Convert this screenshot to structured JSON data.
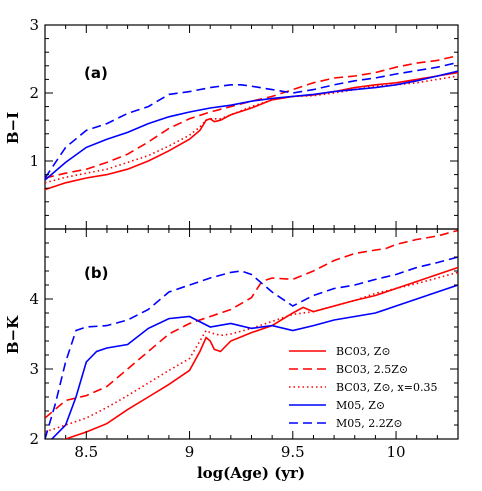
{
  "chart_data": [
    {
      "type": "line",
      "panel_label": "(a)",
      "xlabel": "log(Age) (yr)",
      "ylabel": "B−I",
      "xlim": [
        8.3,
        10.3
      ],
      "ylim": [
        0,
        3
      ],
      "yticks": [
        1,
        2,
        3
      ],
      "series": [
        {
          "name": "BC03, Z⊙",
          "color": "#ff0000",
          "dash": "solid",
          "x": [
            8.3,
            8.4,
            8.5,
            8.6,
            8.7,
            8.8,
            8.9,
            9.0,
            9.05,
            9.08,
            9.1,
            9.12,
            9.15,
            9.2,
            9.3,
            9.4,
            9.5,
            9.6,
            9.7,
            9.8,
            9.9,
            10.0,
            10.1,
            10.2,
            10.3
          ],
          "y": [
            0.58,
            0.68,
            0.75,
            0.8,
            0.88,
            1.0,
            1.15,
            1.32,
            1.45,
            1.6,
            1.62,
            1.58,
            1.6,
            1.68,
            1.78,
            1.9,
            1.95,
            1.97,
            2.02,
            2.08,
            2.12,
            2.15,
            2.2,
            2.25,
            2.3
          ]
        },
        {
          "name": "BC03, 2.5Z⊙",
          "color": "#ff0000",
          "dash": "long",
          "x": [
            8.3,
            8.4,
            8.5,
            8.6,
            8.7,
            8.8,
            8.9,
            9.0,
            9.1,
            9.2,
            9.3,
            9.4,
            9.5,
            9.6,
            9.7,
            9.8,
            9.9,
            10.0,
            10.1,
            10.2,
            10.3
          ],
          "y": [
            0.75,
            0.82,
            0.88,
            0.98,
            1.1,
            1.28,
            1.48,
            1.62,
            1.72,
            1.8,
            1.88,
            1.95,
            2.05,
            2.15,
            2.22,
            2.25,
            2.3,
            2.38,
            2.44,
            2.48,
            2.55
          ]
        },
        {
          "name": "BC03, Z⊙, x=0.35",
          "color": "#ff0000",
          "dash": "dot",
          "x": [
            8.3,
            8.4,
            8.5,
            8.6,
            8.7,
            8.8,
            8.9,
            9.0,
            9.05,
            9.08,
            9.1,
            9.15,
            9.2,
            9.3,
            9.4,
            9.5,
            9.6,
            9.7,
            9.8,
            9.9,
            10.0,
            10.1,
            10.2,
            10.3
          ],
          "y": [
            0.68,
            0.76,
            0.82,
            0.88,
            0.98,
            1.08,
            1.22,
            1.38,
            1.5,
            1.6,
            1.62,
            1.62,
            1.68,
            1.8,
            1.9,
            1.95,
            1.96,
            2.0,
            2.05,
            2.1,
            2.12,
            2.15,
            2.2,
            2.25
          ]
        },
        {
          "name": "M05, Z⊙",
          "color": "#0000ff",
          "dash": "solid",
          "x": [
            8.3,
            8.4,
            8.5,
            8.6,
            8.7,
            8.8,
            8.9,
            9.0,
            9.1,
            9.2,
            9.3,
            9.4,
            9.5,
            9.6,
            9.7,
            9.8,
            9.9,
            10.0,
            10.1,
            10.2,
            10.3
          ],
          "y": [
            0.72,
            0.98,
            1.2,
            1.32,
            1.42,
            1.55,
            1.65,
            1.72,
            1.78,
            1.82,
            1.88,
            1.92,
            1.95,
            1.98,
            2.02,
            2.05,
            2.08,
            2.12,
            2.18,
            2.25,
            2.32
          ]
        },
        {
          "name": "M05, 2.2Z⊙",
          "color": "#0000ff",
          "dash": "long",
          "x": [
            8.3,
            8.4,
            8.5,
            8.6,
            8.7,
            8.8,
            8.9,
            9.0,
            9.1,
            9.2,
            9.25,
            9.3,
            9.4,
            9.5,
            9.6,
            9.7,
            9.8,
            9.9,
            10.0,
            10.1,
            10.2,
            10.3
          ],
          "y": [
            0.75,
            1.2,
            1.45,
            1.55,
            1.7,
            1.8,
            1.98,
            2.02,
            2.08,
            2.12,
            2.12,
            2.1,
            2.05,
            2.0,
            2.05,
            2.12,
            2.18,
            2.22,
            2.28,
            2.33,
            2.38,
            2.45
          ]
        }
      ]
    },
    {
      "type": "line",
      "panel_label": "(b)",
      "xlabel": "log(Age) (yr)",
      "ylabel": "B−K",
      "xlim": [
        8.3,
        10.3
      ],
      "ylim": [
        2,
        5
      ],
      "yticks": [
        2,
        3,
        4
      ],
      "xticks": [
        8.5,
        9,
        9.5,
        10
      ],
      "series": [
        {
          "name": "BC03, Z⊙",
          "color": "#ff0000",
          "dash": "solid",
          "x": [
            8.3,
            8.4,
            8.5,
            8.6,
            8.7,
            8.8,
            8.9,
            9.0,
            9.05,
            9.08,
            9.1,
            9.12,
            9.15,
            9.2,
            9.3,
            9.4,
            9.5,
            9.55,
            9.6,
            9.7,
            9.8,
            9.9,
            10.0,
            10.1,
            10.2,
            10.3
          ],
          "y": [
            1.92,
            2.0,
            2.1,
            2.22,
            2.42,
            2.6,
            2.78,
            2.98,
            3.25,
            3.45,
            3.4,
            3.28,
            3.25,
            3.4,
            3.52,
            3.62,
            3.8,
            3.88,
            3.82,
            3.9,
            3.98,
            4.05,
            4.15,
            4.25,
            4.35,
            4.45
          ]
        },
        {
          "name": "BC03, 2.5Z⊙",
          "color": "#ff0000",
          "dash": "long",
          "x": [
            8.3,
            8.4,
            8.5,
            8.6,
            8.7,
            8.8,
            8.9,
            9.0,
            9.1,
            9.2,
            9.3,
            9.35,
            9.4,
            9.5,
            9.6,
            9.7,
            9.8,
            9.9,
            9.95,
            10.0,
            10.1,
            10.2,
            10.3
          ],
          "y": [
            2.3,
            2.55,
            2.62,
            2.75,
            3.0,
            3.25,
            3.5,
            3.65,
            3.75,
            3.85,
            4.02,
            4.25,
            4.3,
            4.28,
            4.4,
            4.55,
            4.65,
            4.7,
            4.72,
            4.78,
            4.85,
            4.9,
            4.98
          ]
        },
        {
          "name": "BC03, Z⊙, x=0.35",
          "color": "#ff0000",
          "dash": "dot",
          "x": [
            8.3,
            8.4,
            8.5,
            8.6,
            8.7,
            8.8,
            8.9,
            9.0,
            9.05,
            9.08,
            9.1,
            9.15,
            9.2,
            9.3,
            9.4,
            9.5,
            9.6,
            9.7,
            9.8,
            9.9,
            10.0,
            10.1,
            10.2,
            10.3
          ],
          "y": [
            2.1,
            2.2,
            2.3,
            2.45,
            2.62,
            2.8,
            2.98,
            3.15,
            3.4,
            3.55,
            3.52,
            3.48,
            3.5,
            3.58,
            3.68,
            3.78,
            3.82,
            3.9,
            3.98,
            4.08,
            4.15,
            4.22,
            4.3,
            4.38
          ]
        },
        {
          "name": "M05, Z⊙",
          "color": "#0000ff",
          "dash": "solid",
          "x": [
            8.3,
            8.4,
            8.45,
            8.5,
            8.55,
            8.6,
            8.7,
            8.8,
            8.9,
            9.0,
            9.1,
            9.2,
            9.3,
            9.4,
            9.5,
            9.6,
            9.7,
            9.8,
            9.9,
            10.0,
            10.1,
            10.2,
            10.3
          ],
          "y": [
            1.9,
            2.2,
            2.6,
            3.1,
            3.25,
            3.3,
            3.35,
            3.58,
            3.72,
            3.75,
            3.6,
            3.65,
            3.58,
            3.62,
            3.55,
            3.62,
            3.7,
            3.75,
            3.8,
            3.9,
            4.0,
            4.1,
            4.2
          ]
        },
        {
          "name": "M05, 2.2Z⊙",
          "color": "#0000ff",
          "dash": "long",
          "x": [
            8.3,
            8.35,
            8.4,
            8.45,
            8.5,
            8.6,
            8.7,
            8.8,
            8.9,
            9.0,
            9.1,
            9.2,
            9.25,
            9.3,
            9.4,
            9.5,
            9.6,
            9.7,
            9.8,
            9.9,
            10.0,
            10.1,
            10.2,
            10.3
          ],
          "y": [
            2.0,
            2.5,
            3.1,
            3.55,
            3.6,
            3.62,
            3.7,
            3.85,
            4.1,
            4.2,
            4.3,
            4.38,
            4.4,
            4.35,
            4.1,
            3.9,
            4.05,
            4.15,
            4.2,
            4.28,
            4.35,
            4.45,
            4.52,
            4.6
          ]
        }
      ]
    }
  ]
}
